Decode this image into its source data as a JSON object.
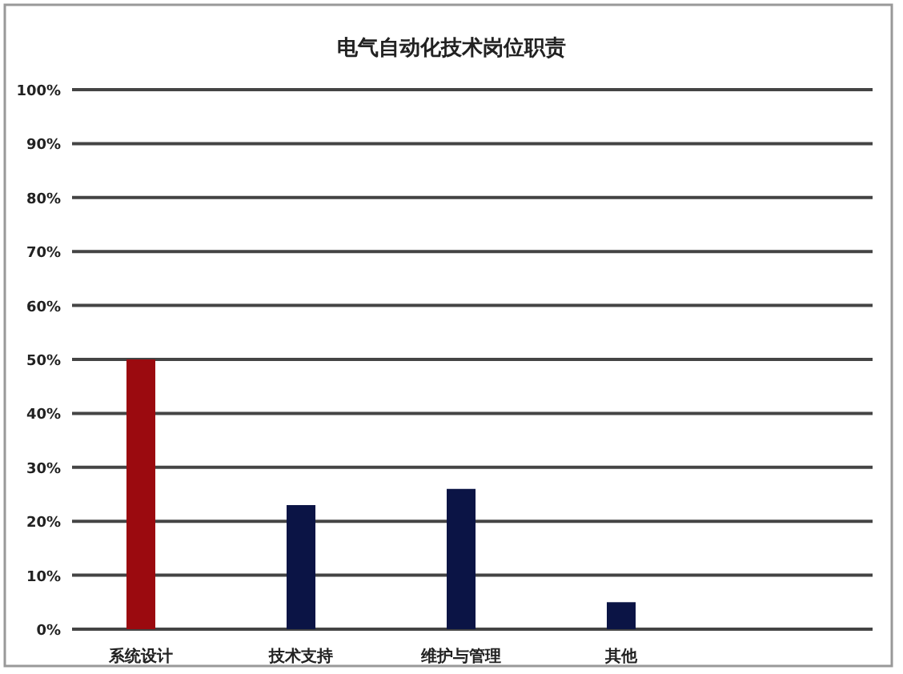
{
  "chart_data": {
    "type": "bar",
    "title": "电气自动化技术岗位职责",
    "categories": [
      "系统设计",
      "技术支持",
      "维护与管理",
      "其他"
    ],
    "values": [
      50,
      23,
      26,
      5
    ],
    "colors": [
      "#9b0a0f",
      "#0b1445",
      "#0b1445",
      "#0b1445"
    ],
    "ylim": [
      0,
      100
    ],
    "yticks": [
      {
        "value": 0,
        "label": "0%"
      },
      {
        "value": 10,
        "label": "10%"
      },
      {
        "value": 20,
        "label": "20%"
      },
      {
        "value": 30,
        "label": "30%"
      },
      {
        "value": 40,
        "label": "40%"
      },
      {
        "value": 50,
        "label": "50%"
      },
      {
        "value": 60,
        "label": "60%"
      },
      {
        "value": 70,
        "label": "70%"
      },
      {
        "value": 80,
        "label": "80%"
      },
      {
        "value": 90,
        "label": "90%"
      },
      {
        "value": 100,
        "label": "100%"
      }
    ],
    "grid": "y"
  }
}
